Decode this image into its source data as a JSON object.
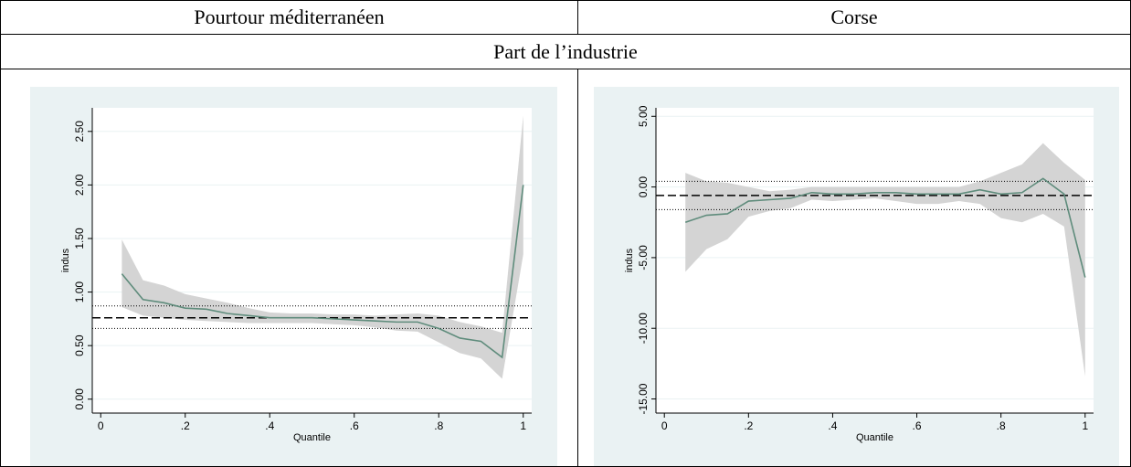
{
  "table": {
    "headers": [
      "Pourtour méditerranéen",
      "Corse"
    ],
    "section": "Part de l’industrie"
  },
  "chart_data": [
    {
      "type": "quantile",
      "y_label": "indus",
      "x_label": "Quantile",
      "color": "#5f8c7c",
      "band_color": "#d4d4d4",
      "x": [
        0.05,
        0.1,
        0.15,
        0.2,
        0.25,
        0.3,
        0.35,
        0.4,
        0.45,
        0.5,
        0.55,
        0.6,
        0.65,
        0.7,
        0.75,
        0.8,
        0.85,
        0.9,
        0.95,
        1
      ],
      "values": [
        1.17,
        0.93,
        0.9,
        0.85,
        0.84,
        0.8,
        0.78,
        0.76,
        0.76,
        0.76,
        0.75,
        0.74,
        0.73,
        0.72,
        0.72,
        0.66,
        0.57,
        0.54,
        0.39,
        2.0
      ],
      "ci_upper": [
        1.49,
        1.11,
        1.06,
        0.98,
        0.94,
        0.9,
        0.85,
        0.81,
        0.8,
        0.8,
        0.79,
        0.79,
        0.78,
        0.79,
        0.8,
        0.78,
        0.72,
        0.68,
        0.62,
        2.65
      ],
      "ci_lower": [
        0.86,
        0.78,
        0.76,
        0.74,
        0.73,
        0.72,
        0.71,
        0.71,
        0.71,
        0.71,
        0.7,
        0.69,
        0.67,
        0.64,
        0.63,
        0.53,
        0.43,
        0.38,
        0.19,
        1.35
      ],
      "ols": 0.76,
      "ols_ci": [
        0.66,
        0.87
      ],
      "xlim": [
        -0.02,
        1.02
      ],
      "ylim": [
        -0.13,
        2.72
      ],
      "xticks": [
        0,
        {
          "value": 0.2,
          "label": ".2"
        },
        {
          "value": 0.4,
          "label": ".4"
        },
        {
          "value": 0.6,
          "label": ".6"
        },
        {
          "value": 0.8,
          "label": ".8"
        },
        1
      ],
      "yticks": [
        {
          "value": 0,
          "label": "0.00"
        },
        {
          "value": 0.5,
          "label": "0.50"
        },
        {
          "value": 1,
          "label": "1.00"
        },
        {
          "value": 1.5,
          "label": "1.50"
        },
        {
          "value": 2,
          "label": "2.00"
        },
        {
          "value": 2.5,
          "label": "2.50"
        }
      ]
    },
    {
      "type": "quantile",
      "y_label": "indus",
      "x_label": "Quantile",
      "color": "#5f8c7c",
      "band_color": "#d4d4d4",
      "x": [
        0.05,
        0.1,
        0.15,
        0.2,
        0.25,
        0.3,
        0.35,
        0.4,
        0.45,
        0.5,
        0.55,
        0.6,
        0.65,
        0.7,
        0.75,
        0.8,
        0.85,
        0.9,
        0.95,
        1
      ],
      "values": [
        -2.5,
        -2.0,
        -1.9,
        -1.0,
        -0.9,
        -0.8,
        -0.4,
        -0.5,
        -0.5,
        -0.4,
        -0.4,
        -0.5,
        -0.5,
        -0.5,
        -0.2,
        -0.5,
        -0.4,
        0.6,
        -0.5,
        -6.4
      ],
      "ci_upper": [
        1.0,
        0.4,
        0.3,
        0.0,
        -0.3,
        -0.2,
        0.0,
        0.0,
        0.0,
        0.0,
        0.0,
        0.0,
        0.0,
        0.0,
        0.4,
        1.0,
        1.6,
        3.1,
        1.7,
        0.5
      ],
      "ci_lower": [
        -6.0,
        -4.4,
        -3.7,
        -2.1,
        -1.7,
        -1.5,
        -0.9,
        -1.0,
        -0.9,
        -0.8,
        -1.0,
        -1.2,
        -1.2,
        -1.0,
        -1.2,
        -2.2,
        -2.5,
        -1.9,
        -2.8,
        -13.4
      ],
      "ols": -0.6,
      "ols_ci": [
        -1.6,
        0.4
      ],
      "xlim": [
        -0.02,
        1.02
      ],
      "ylim": [
        -16,
        5.6
      ],
      "xticks": [
        0,
        {
          "value": 0.2,
          "label": ".2"
        },
        {
          "value": 0.4,
          "label": ".4"
        },
        {
          "value": 0.6,
          "label": ".6"
        },
        {
          "value": 0.8,
          "label": ".8"
        },
        1
      ],
      "yticks": [
        {
          "value": -15,
          "label": "-15.00"
        },
        {
          "value": -10,
          "label": "-10.00"
        },
        {
          "value": -5,
          "label": "-5.00"
        },
        {
          "value": 0,
          "label": "0.00"
        },
        {
          "value": 5,
          "label": "5.00"
        }
      ]
    }
  ]
}
